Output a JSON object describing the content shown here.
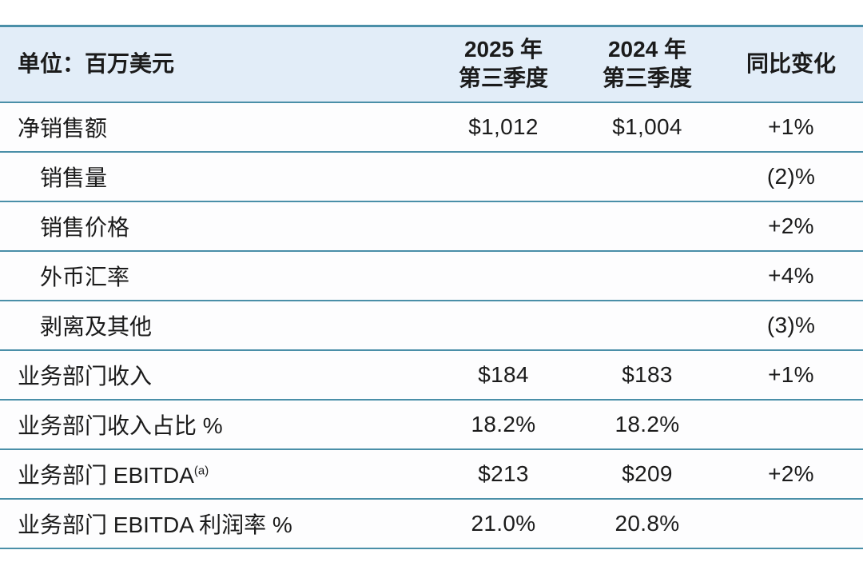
{
  "colors": {
    "header_bg": "#e2edf8",
    "row_border": "#4a8fa8",
    "text": "#1b1b1b",
    "page_bg": "#ffffff"
  },
  "table": {
    "header": {
      "unit_label": "单位：百万美元",
      "col_2025_line1": "2025 年",
      "col_2025_line2": "第三季度",
      "col_2024_line1": "2024 年",
      "col_2024_line2": "第三季度",
      "col_yoy": "同比变化"
    },
    "rows": [
      {
        "label": "净销售额",
        "q3_2025": "$1,012",
        "q3_2024": "$1,004",
        "yoy": "+1%"
      },
      {
        "label": "销售量",
        "q3_2025": "",
        "q3_2024": "",
        "yoy": "(2)%"
      },
      {
        "label": "销售价格",
        "q3_2025": "",
        "q3_2024": "",
        "yoy": "+2%"
      },
      {
        "label": "外币汇率",
        "q3_2025": "",
        "q3_2024": "",
        "yoy": "+4%"
      },
      {
        "label": "剥离及其他",
        "q3_2025": "",
        "q3_2024": "",
        "yoy": "(3)%"
      },
      {
        "label": "业务部门收入",
        "q3_2025": "$184",
        "q3_2024": "$183",
        "yoy": "+1%"
      },
      {
        "label": "业务部门收入占比 %",
        "q3_2025": "18.2%",
        "q3_2024": "18.2%",
        "yoy": ""
      },
      {
        "label": "业务部门 EBITDA",
        "superscript": "(a)",
        "q3_2025": "$213",
        "q3_2024": "$209",
        "yoy": "+2%"
      },
      {
        "label": "业务部门 EBITDA 利润率 %",
        "q3_2025": "21.0%",
        "q3_2024": "20.8%",
        "yoy": ""
      }
    ]
  },
  "chart_data": {
    "type": "table",
    "title": "单位：百万美元",
    "columns": [
      "单位：百万美元",
      "2025 年 第三季度",
      "2024 年 第三季度",
      "同比变化"
    ],
    "rows": [
      [
        "净销售额",
        "$1,012",
        "$1,004",
        "+1%"
      ],
      [
        "销售量",
        "",
        "",
        "(2)%"
      ],
      [
        "销售价格",
        "",
        "",
        "+2%"
      ],
      [
        "外币汇率",
        "",
        "",
        "+4%"
      ],
      [
        "剥离及其他",
        "",
        "",
        "(3)%"
      ],
      [
        "业务部门收入",
        "$184",
        "$183",
        "+1%"
      ],
      [
        "业务部门收入占比 %",
        "18.2%",
        "18.2%",
        ""
      ],
      [
        "业务部门 EBITDA(a)",
        "$213",
        "$209",
        "+2%"
      ],
      [
        "业务部门 EBITDA 利润率 %",
        "21.0%",
        "20.8%",
        ""
      ]
    ]
  }
}
